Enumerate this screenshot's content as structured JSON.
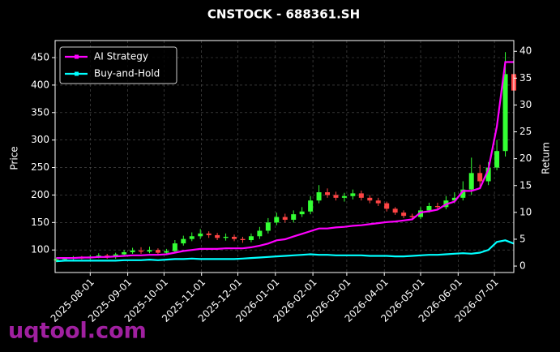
{
  "chart_data": {
    "type": "candlestick",
    "title": "CNSTOCK - 688361.SH",
    "ylabel": "Price",
    "y2label": "Return",
    "watermark": "uqtool.com",
    "grid": true,
    "legend": "upper left",
    "up_color": "#33ff33",
    "down_color": "#ff4444",
    "xlim": [
      "2025-07-03",
      "2026-07-17"
    ],
    "xticks": [
      "2025-08-01",
      "2025-09-01",
      "2025-10-01",
      "2025-11-01",
      "2025-12-01",
      "2026-01-01",
      "2026-02-01",
      "2026-03-01",
      "2026-04-01",
      "2026-05-01",
      "2026-06-01",
      "2026-07-01"
    ],
    "ylim": [
      59,
      481
    ],
    "yticks": [
      100,
      150,
      200,
      250,
      300,
      350,
      400,
      450
    ],
    "y2lim": [
      -1.2,
      42
    ],
    "y2ticks": [
      0,
      5,
      10,
      15,
      20,
      25,
      30,
      35,
      40
    ],
    "x": [
      "2025-07-04",
      "2025-07-11",
      "2025-07-18",
      "2025-07-25",
      "2025-08-01",
      "2025-08-08",
      "2025-08-15",
      "2025-08-22",
      "2025-08-29",
      "2025-09-05",
      "2025-09-12",
      "2025-09-19",
      "2025-09-26",
      "2025-10-03",
      "2025-10-10",
      "2025-10-17",
      "2025-10-24",
      "2025-10-31",
      "2025-11-07",
      "2025-11-14",
      "2025-11-21",
      "2025-11-28",
      "2025-12-05",
      "2025-12-12",
      "2025-12-19",
      "2025-12-26",
      "2026-01-02",
      "2026-01-09",
      "2026-01-16",
      "2026-01-23",
      "2026-01-30",
      "2026-02-06",
      "2026-02-13",
      "2026-02-20",
      "2026-02-27",
      "2026-03-06",
      "2026-03-13",
      "2026-03-20",
      "2026-03-27",
      "2026-04-03",
      "2026-04-10",
      "2026-04-17",
      "2026-04-24",
      "2026-05-01",
      "2026-05-08",
      "2026-05-15",
      "2026-05-22",
      "2026-05-29",
      "2026-06-05",
      "2026-06-12",
      "2026-06-19",
      "2026-06-26",
      "2026-07-03",
      "2026-07-10",
      "2026-07-17"
    ],
    "open": [
      81,
      83,
      84,
      86,
      85,
      88,
      90,
      87,
      92,
      96,
      99,
      97,
      100,
      95,
      98,
      112,
      120,
      125,
      130,
      127,
      122,
      124,
      120,
      118,
      125,
      135,
      150,
      160,
      155,
      165,
      170,
      190,
      205,
      200,
      195,
      198,
      203,
      195,
      190,
      185,
      175,
      168,
      162,
      160,
      172,
      180,
      178,
      190,
      195,
      210,
      240,
      225,
      250,
      280,
      420
    ],
    "high": [
      86,
      87,
      89,
      89,
      91,
      94,
      93,
      95,
      100,
      104,
      105,
      106,
      103,
      102,
      118,
      126,
      132,
      138,
      134,
      131,
      130,
      128,
      124,
      130,
      142,
      158,
      168,
      166,
      172,
      178,
      198,
      218,
      212,
      206,
      204,
      210,
      208,
      200,
      195,
      188,
      178,
      172,
      166,
      178,
      186,
      186,
      198,
      205,
      225,
      268,
      255,
      260,
      300,
      460,
      435
    ],
    "low": [
      78,
      80,
      81,
      83,
      82,
      85,
      84,
      84,
      88,
      93,
      93,
      94,
      92,
      91,
      95,
      108,
      116,
      120,
      122,
      118,
      117,
      116,
      113,
      114,
      120,
      130,
      145,
      150,
      150,
      160,
      165,
      185,
      195,
      190,
      188,
      192,
      190,
      185,
      180,
      170,
      164,
      158,
      154,
      156,
      168,
      172,
      174,
      185,
      190,
      200,
      215,
      218,
      245,
      270,
      330
    ],
    "close": [
      83,
      84,
      86,
      85,
      88,
      90,
      87,
      92,
      96,
      99,
      97,
      100,
      95,
      98,
      112,
      120,
      125,
      130,
      127,
      122,
      124,
      120,
      118,
      125,
      135,
      150,
      160,
      155,
      165,
      170,
      190,
      205,
      200,
      195,
      198,
      203,
      195,
      190,
      185,
      175,
      168,
      162,
      160,
      172,
      180,
      178,
      190,
      195,
      210,
      240,
      225,
      250,
      280,
      420,
      390
    ],
    "series": [
      {
        "name": "AI Strategy",
        "color": "#ff00ff",
        "axis": "y2",
        "values": [
          1.5,
          1.5,
          1.5,
          1.6,
          1.6,
          1.7,
          1.7,
          1.8,
          1.9,
          2.0,
          2.0,
          2.1,
          2.1,
          2.2,
          2.5,
          2.8,
          3.0,
          3.2,
          3.2,
          3.2,
          3.3,
          3.3,
          3.3,
          3.5,
          3.8,
          4.2,
          4.8,
          5.0,
          5.5,
          6.0,
          6.5,
          7.0,
          7.0,
          7.2,
          7.3,
          7.5,
          7.6,
          7.8,
          8.0,
          8.2,
          8.3,
          8.5,
          8.7,
          10.0,
          10.2,
          10.5,
          11.5,
          12.0,
          14.0,
          14.0,
          14.5,
          18.0,
          26.0,
          38.0,
          38.0
        ]
      },
      {
        "name": "Buy-and-Hold",
        "color": "#00ffff",
        "axis": "y2",
        "values": [
          0.9,
          1.0,
          1.0,
          1.0,
          1.0,
          1.0,
          1.0,
          1.0,
          1.1,
          1.1,
          1.1,
          1.2,
          1.1,
          1.2,
          1.3,
          1.3,
          1.4,
          1.3,
          1.3,
          1.3,
          1.3,
          1.3,
          1.4,
          1.5,
          1.6,
          1.7,
          1.8,
          1.9,
          2.0,
          2.1,
          2.2,
          2.1,
          2.1,
          2.0,
          2.0,
          2.0,
          2.0,
          1.9,
          1.9,
          1.9,
          1.8,
          1.8,
          1.9,
          2.0,
          2.1,
          2.1,
          2.2,
          2.3,
          2.4,
          2.3,
          2.5,
          3.0,
          4.5,
          4.8,
          4.2
        ]
      }
    ]
  }
}
